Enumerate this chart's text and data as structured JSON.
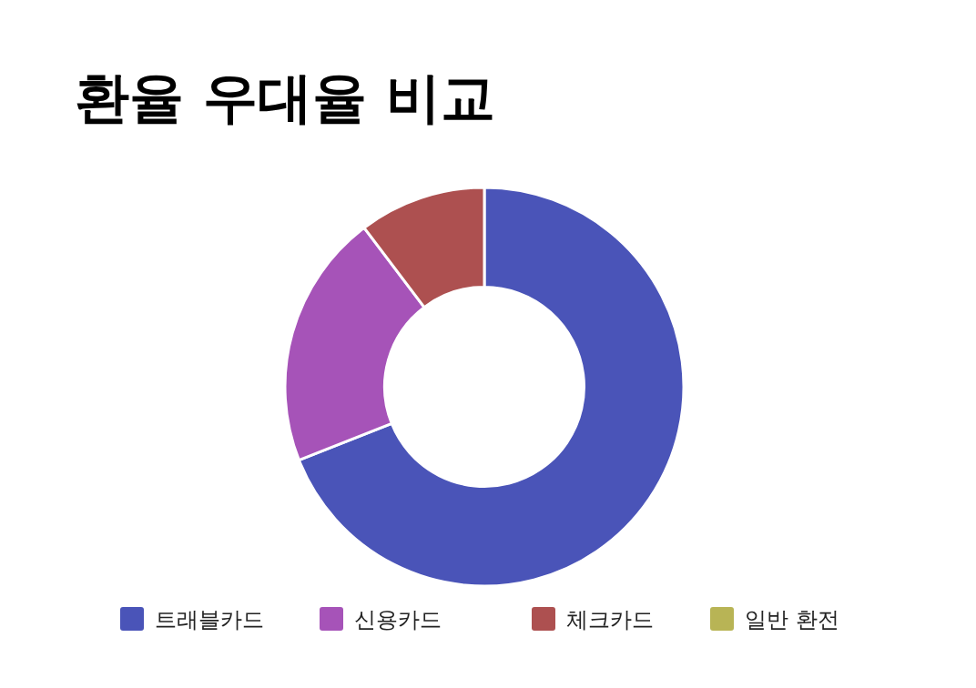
{
  "chart_data": {
    "type": "donut",
    "title": "환율 우대율 비교",
    "categories": [
      "트래블카드",
      "신용카드",
      "체크카드",
      "일반 환전"
    ],
    "values": [
      69,
      20.7,
      10.3,
      0
    ],
    "colors": [
      "#4a54b8",
      "#a653b8",
      "#ad5050",
      "#b8b455"
    ],
    "legend": "bottom"
  }
}
